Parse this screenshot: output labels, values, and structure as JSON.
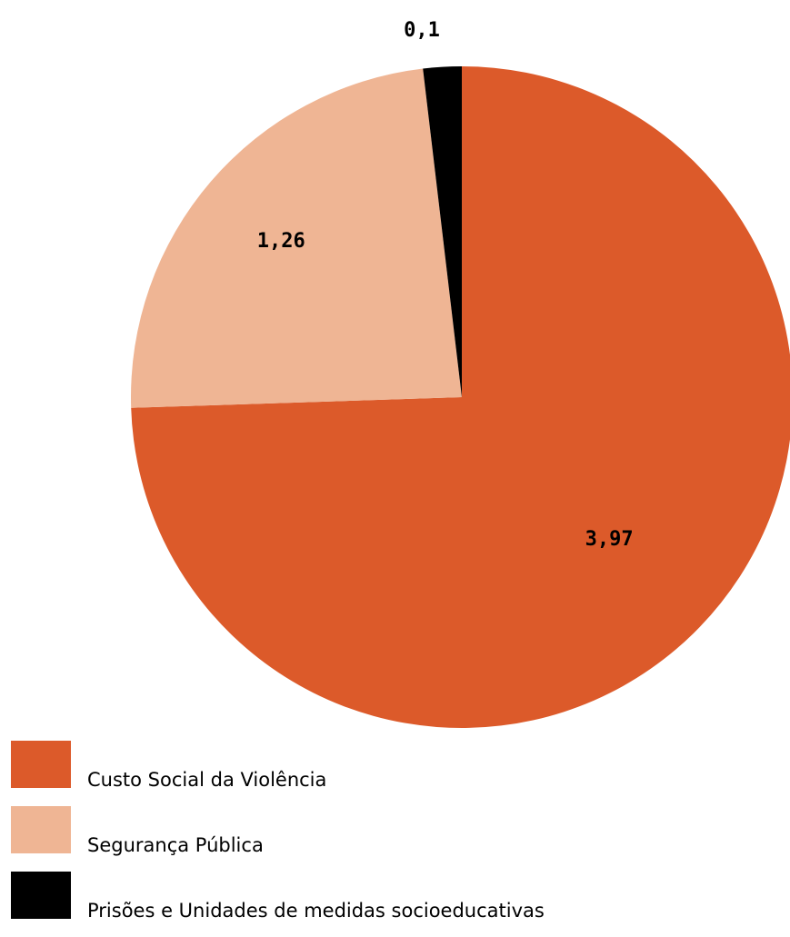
{
  "chart_data": {
    "type": "pie",
    "title": "",
    "categories": [
      "Custo Social da Violência",
      "Segurança Pública",
      "Prisões e Unidades de medidas socioeducativas"
    ],
    "values": [
      3.97,
      1.26,
      0.1
    ],
    "value_labels": [
      "3,97",
      "1,26",
      "0,1"
    ],
    "colors": [
      "#DC5A2A",
      "#EFB594",
      "#000000"
    ],
    "start_angle_deg": 0,
    "direction": "clockwise",
    "legend_position": "bottom-left"
  }
}
